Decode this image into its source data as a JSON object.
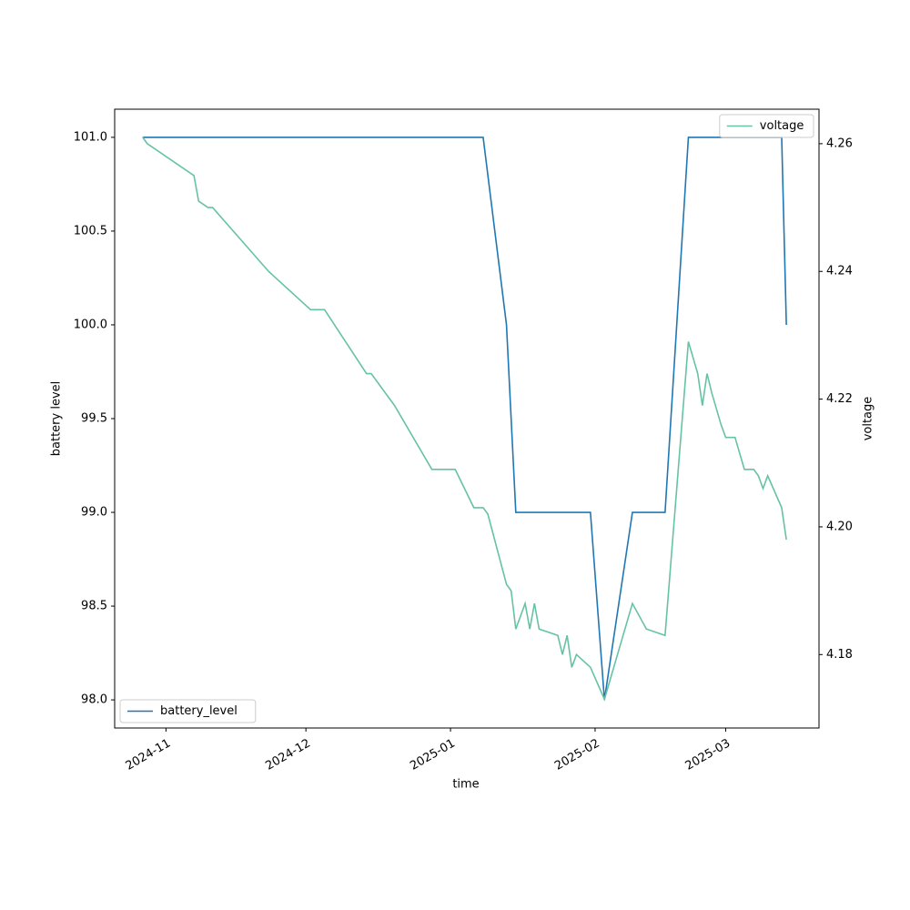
{
  "chart_data": {
    "type": "line",
    "xlabel": "time",
    "ylabel": "battery level",
    "y2label": "voltage",
    "xlim": [
      "2024-10-21",
      "2025-03-21"
    ],
    "xticks": [
      {
        "value": "2024-11-01",
        "label": "2024-11"
      },
      {
        "value": "2024-12-01",
        "label": "2024-12"
      },
      {
        "value": "2025-01-01",
        "label": "2025-01"
      },
      {
        "value": "2025-02-01",
        "label": "2025-02"
      },
      {
        "value": "2025-03-01",
        "label": "2025-03"
      }
    ],
    "ylim": [
      97.85,
      101.15
    ],
    "yticks": [
      {
        "value": 98,
        "label": "98.0"
      },
      {
        "value": 98.5,
        "label": "98.5"
      },
      {
        "value": 99,
        "label": "99.0"
      },
      {
        "value": 99.5,
        "label": "99.5"
      },
      {
        "value": 100,
        "label": "100.0"
      },
      {
        "value": 100.5,
        "label": "100.5"
      },
      {
        "value": 101,
        "label": "101.0"
      }
    ],
    "y2lim": [
      4.1685,
      4.2654
    ],
    "y2ticks": [
      4.18,
      {
        "value": 4.2,
        "label": "4.20"
      },
      4.22,
      4.24,
      4.26
    ],
    "series": [
      {
        "name": "battery_level",
        "color": "#1f77b4",
        "axis": "y",
        "legend_loc": "lower left",
        "x": [
          "2024-10-27",
          "2025-01-08",
          "2025-01-13",
          "2025-01-15",
          "2025-01-31",
          "2025-02-03",
          "2025-02-09",
          "2025-02-16",
          "2025-02-21",
          "2025-03-13",
          "2025-03-14"
        ],
        "values": [
          101,
          101,
          100,
          99,
          99,
          98,
          99,
          99,
          101,
          101,
          100
        ]
      },
      {
        "name": "voltage",
        "color": "#66c2a5",
        "axis": "y2",
        "legend_loc": "upper right",
        "x": [
          "2024-10-27",
          "2024-10-28",
          "2024-11-07",
          "2024-11-08",
          "2024-11-10",
          "2024-11-11",
          "2024-11-17",
          "2024-11-23",
          "2024-12-02",
          "2024-12-05",
          "2024-12-14",
          "2024-12-15",
          "2024-12-20",
          "2024-12-28",
          "2025-01-02",
          "2025-01-06",
          "2025-01-08",
          "2025-01-09",
          "2025-01-13",
          "2025-01-14",
          "2025-01-15",
          "2025-01-17",
          "2025-01-18",
          "2025-01-19",
          "2025-01-20",
          "2025-01-24",
          "2025-01-25",
          "2025-01-26",
          "2025-01-27",
          "2025-01-28",
          "2025-01-31",
          "2025-02-03",
          "2025-02-09",
          "2025-02-12",
          "2025-02-16",
          "2025-02-21",
          "2025-02-23",
          "2025-02-24",
          "2025-02-25",
          "2025-02-26",
          "2025-02-28",
          "2025-03-01",
          "2025-03-03",
          "2025-03-05",
          "2025-03-07",
          "2025-03-08",
          "2025-03-09",
          "2025-03-10",
          "2025-03-13",
          "2025-03-14"
        ],
        "values": [
          4.261,
          4.26,
          4.255,
          4.251,
          4.25,
          4.25,
          4.245,
          4.24,
          4.234,
          4.234,
          4.224,
          4.224,
          4.219,
          4.209,
          4.209,
          4.203,
          4.203,
          4.202,
          4.191,
          4.19,
          4.184,
          4.188,
          4.184,
          4.188,
          4.184,
          4.183,
          4.18,
          4.183,
          4.178,
          4.18,
          4.178,
          4.173,
          4.188,
          4.184,
          4.183,
          4.229,
          4.224,
          4.219,
          4.224,
          4.221,
          4.216,
          4.214,
          4.214,
          4.209,
          4.209,
          4.208,
          4.206,
          4.208,
          4.203,
          4.198
        ]
      }
    ]
  }
}
